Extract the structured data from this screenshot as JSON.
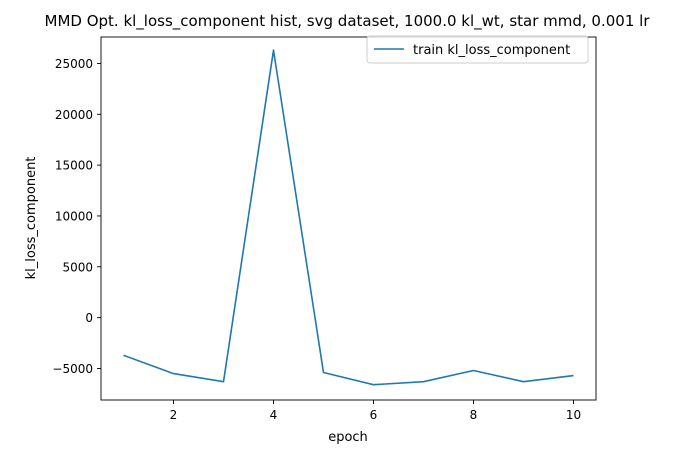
{
  "chart_data": {
    "type": "line",
    "title": "MMD Opt. kl_loss_component hist, svg dataset, 1000.0 kl_wt, star mmd, 0.001 lr",
    "xlabel": "epoch",
    "ylabel": "kl_loss_component",
    "xlim": [
      0.55,
      10.45
    ],
    "ylim": [
      -8100,
      27600
    ],
    "xticks": [
      2,
      4,
      6,
      8,
      10
    ],
    "yticks": [
      -5000,
      0,
      5000,
      10000,
      15000,
      20000,
      25000
    ],
    "grid": false,
    "legend_position": "top-right",
    "series": [
      {
        "name": "train kl_loss_component",
        "color": "#1f77b4",
        "x": [
          1,
          2,
          3,
          4,
          5,
          6,
          7,
          8,
          9,
          10
        ],
        "y": [
          -3700,
          -5500,
          -6300,
          26300,
          -5400,
          -6600,
          -6300,
          -5200,
          -6300,
          -5700
        ]
      }
    ]
  }
}
